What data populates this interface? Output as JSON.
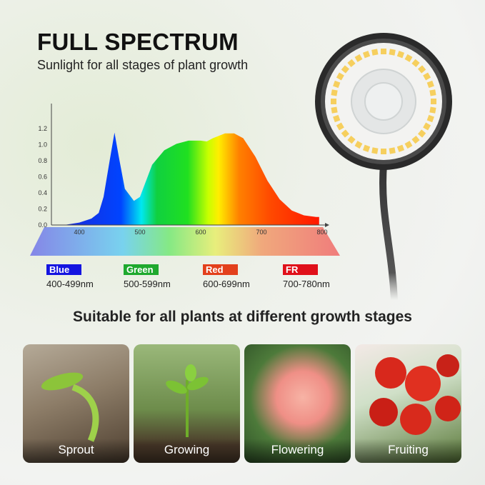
{
  "header": {
    "title": "FULL SPECTRUM",
    "subtitle": "Sunlight for all stages of plant growth"
  },
  "chart_data": {
    "type": "area",
    "title": "",
    "xlabel": "",
    "ylabel": "",
    "x_ticks": [
      "400",
      "500",
      "600",
      "700",
      "800"
    ],
    "y_ticks": [
      "0.0",
      "0.2",
      "0.4",
      "0.6",
      "0.8",
      "1.0",
      "1.2"
    ],
    "xlim": [
      370,
      800
    ],
    "ylim": [
      0,
      1.2
    ],
    "grid": false,
    "series": [
      {
        "x": [
          375,
          400,
          420,
          432,
          440,
          450,
          458,
          465,
          475,
          490,
          500,
          510,
          520,
          540,
          560,
          580,
          600,
          610,
          620,
          640,
          655,
          670,
          690,
          710,
          730,
          750,
          770,
          790,
          795
        ],
        "y": [
          0,
          0.03,
          0.08,
          0.15,
          0.35,
          0.8,
          1.15,
          0.85,
          0.45,
          0.3,
          0.35,
          0.55,
          0.75,
          0.93,
          1.01,
          1.05,
          1.05,
          1.04,
          1.08,
          1.14,
          1.14,
          1.08,
          0.85,
          0.55,
          0.32,
          0.18,
          0.12,
          0.1,
          0.1
        ]
      }
    ]
  },
  "legend": [
    {
      "label": "Blue",
      "range": "400-499nm",
      "color": "#1414e0"
    },
    {
      "label": "Green",
      "range": "500-599nm",
      "color": "#1fa92e"
    },
    {
      "label": "Red",
      "range": "600-699nm",
      "color": "#e3401c"
    },
    {
      "label": "FR",
      "range": "700-780nm",
      "color": "#e0101a"
    }
  ],
  "section": {
    "heading": "Suitable for all plants at different growth stages"
  },
  "stages": [
    {
      "label": "Sprout"
    },
    {
      "label": "Growing"
    },
    {
      "label": "Flowering"
    },
    {
      "label": "Fruiting"
    }
  ]
}
